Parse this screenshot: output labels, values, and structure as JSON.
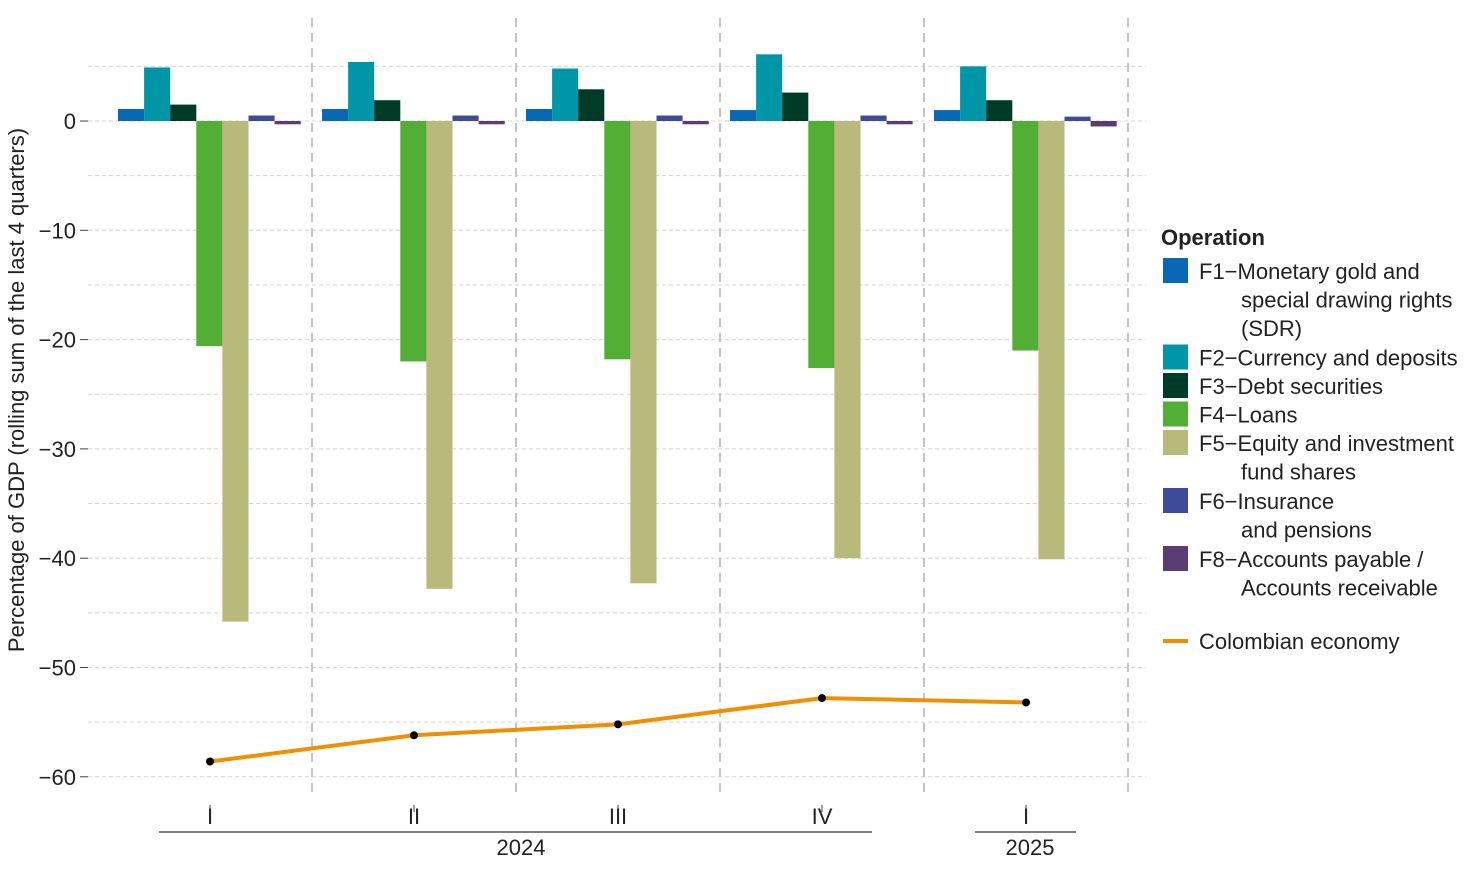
{
  "chart_data": {
    "type": "bar",
    "ylabel": "Percentage of GDP (rolling sum of the last 4 quarters)",
    "ylim": [
      -62,
      8
    ],
    "yticks": [
      0,
      -10,
      -20,
      -30,
      -40,
      -50,
      -60
    ],
    "grid": true,
    "legend_placement": "right",
    "categories": [
      "I",
      "II",
      "III",
      "IV",
      "I"
    ],
    "years": [
      {
        "label": "2024",
        "span": [
          0,
          3
        ]
      },
      {
        "label": "2025",
        "span": [
          4,
          4
        ]
      }
    ],
    "legend_title": "Operation",
    "series": [
      {
        "name": "F1−Monetary gold and special drawing rights (SDR)",
        "legend_lines": [
          "F1−Monetary gold and",
          "special drawing rights",
          "(SDR)"
        ],
        "color": "#0868b5",
        "values": [
          1.1,
          1.1,
          1.1,
          1.0,
          1.0
        ]
      },
      {
        "name": "F2−Currency and deposits",
        "legend_lines": [
          "F2−Currency and deposits"
        ],
        "color": "#0096a8",
        "values": [
          4.9,
          5.4,
          4.8,
          6.1,
          5.0
        ]
      },
      {
        "name": "F3−Debt securities",
        "legend_lines": [
          "F3−Debt securities"
        ],
        "color": "#003b28",
        "values": [
          1.5,
          1.9,
          2.9,
          2.6,
          1.9
        ]
      },
      {
        "name": "F4−Loans",
        "legend_lines": [
          "F4−Loans"
        ],
        "color": "#52ae34",
        "values": [
          -20.6,
          -22.0,
          -21.8,
          -22.6,
          -21.0
        ]
      },
      {
        "name": "F5−Equity and investment fund shares",
        "legend_lines": [
          "F5−Equity and investment",
          "fund shares"
        ],
        "color": "#b8b97a",
        "values": [
          -45.8,
          -42.8,
          -42.3,
          -40.0,
          -40.1
        ]
      },
      {
        "name": "F6−Insurance and pensions",
        "legend_lines": [
          "F6−Insurance",
          "and pensions"
        ],
        "color": "#3e4a9a",
        "values": [
          0.5,
          0.5,
          0.5,
          0.5,
          0.4
        ]
      },
      {
        "name": "F8−Accounts payable / Accounts receivable",
        "legend_lines": [
          "F8−Accounts payable /",
          "Accounts receivable"
        ],
        "color": "#5a3d72",
        "values": [
          -0.3,
          -0.3,
          -0.3,
          -0.3,
          -0.5
        ]
      }
    ],
    "line": {
      "name": "Colombian economy",
      "color": "#f18f01",
      "values": [
        -58.6,
        -56.2,
        -55.2,
        -52.8,
        -53.2
      ]
    }
  }
}
